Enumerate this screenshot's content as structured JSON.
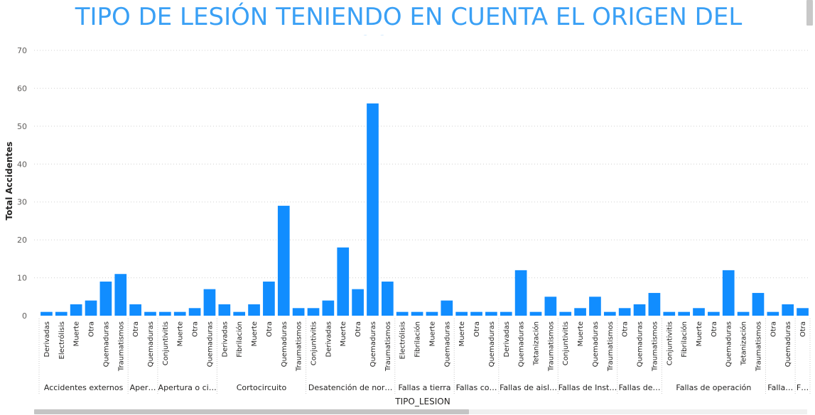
{
  "chart_data": {
    "type": "bar",
    "title": "TIPO DE LESIÓN TENIENDO EN CUENTA EL ORIGEN DEL ACCIDENTE",
    "xlabel": "TIPO_LESION",
    "ylabel": "Total Accidentes",
    "ylim": [
      0,
      70
    ],
    "yticks": [
      0,
      10,
      20,
      30,
      40,
      50,
      60,
      70
    ],
    "grid": true,
    "color": "#118dff",
    "groups": [
      {
        "label": "Accidentes externos",
        "categories": [
          "Derivadas",
          "Electrólisis",
          "Muerte",
          "Otra",
          "Quemaduras",
          "Traumatismos"
        ],
        "values": [
          1,
          1,
          3,
          4,
          9,
          11
        ]
      },
      {
        "label": "Aper…",
        "categories": [
          "Otra",
          "Quemaduras"
        ],
        "values": [
          3,
          1
        ]
      },
      {
        "label": "Apertura o ci…",
        "categories": [
          "Conjuntivitis",
          "Muerte",
          "Otra",
          "Quemaduras"
        ],
        "values": [
          1,
          1,
          2,
          7
        ]
      },
      {
        "label": "Cortocircuito",
        "categories": [
          "Derivadas",
          "Fibrilación",
          "Muerte",
          "Otra",
          "Quemaduras",
          "Traumatismos"
        ],
        "values": [
          3,
          1,
          3,
          9,
          29,
          2
        ]
      },
      {
        "label": "Desatención de nor…",
        "categories": [
          "Conjuntivitis",
          "Derivadas",
          "Muerte",
          "Otra",
          "Quemaduras",
          "Traumatismos"
        ],
        "values": [
          2,
          4,
          18,
          7,
          56,
          9
        ]
      },
      {
        "label": "Fallas a tierra",
        "categories": [
          "Electrólisis",
          "Fibrilación",
          "Muerte",
          "Quemaduras"
        ],
        "values": [
          1,
          1,
          1,
          4
        ]
      },
      {
        "label": "Fallas co…",
        "categories": [
          "Muerte",
          "Otra",
          "Quemaduras"
        ],
        "values": [
          1,
          1,
          1
        ]
      },
      {
        "label": "Fallas de aisl…",
        "categories": [
          "Derivadas",
          "Quemaduras",
          "Tetanización",
          "Traumatismos"
        ],
        "values": [
          1,
          12,
          1,
          5
        ]
      },
      {
        "label": "Fallas de Inst…",
        "categories": [
          "Conjuntivitis",
          "Muerte",
          "Quemaduras",
          "Traumatismos"
        ],
        "values": [
          1,
          2,
          5,
          1
        ]
      },
      {
        "label": "Fallas de…",
        "categories": [
          "Otra",
          "Quemaduras",
          "Traumatismos"
        ],
        "values": [
          2,
          3,
          6
        ]
      },
      {
        "label": "Fallas de operación",
        "categories": [
          "Conjuntivitis",
          "Fibrilación",
          "Muerte",
          "Otra",
          "Quemaduras",
          "Tetanización",
          "Traumatismos"
        ],
        "values": [
          1,
          1,
          2,
          1,
          12,
          1,
          6
        ]
      },
      {
        "label": "Falla…",
        "categories": [
          "Otra",
          "Quemaduras"
        ],
        "values": [
          1,
          3
        ]
      },
      {
        "label": "F…",
        "categories": [
          "Otra"
        ],
        "values": [
          2
        ]
      }
    ]
  }
}
